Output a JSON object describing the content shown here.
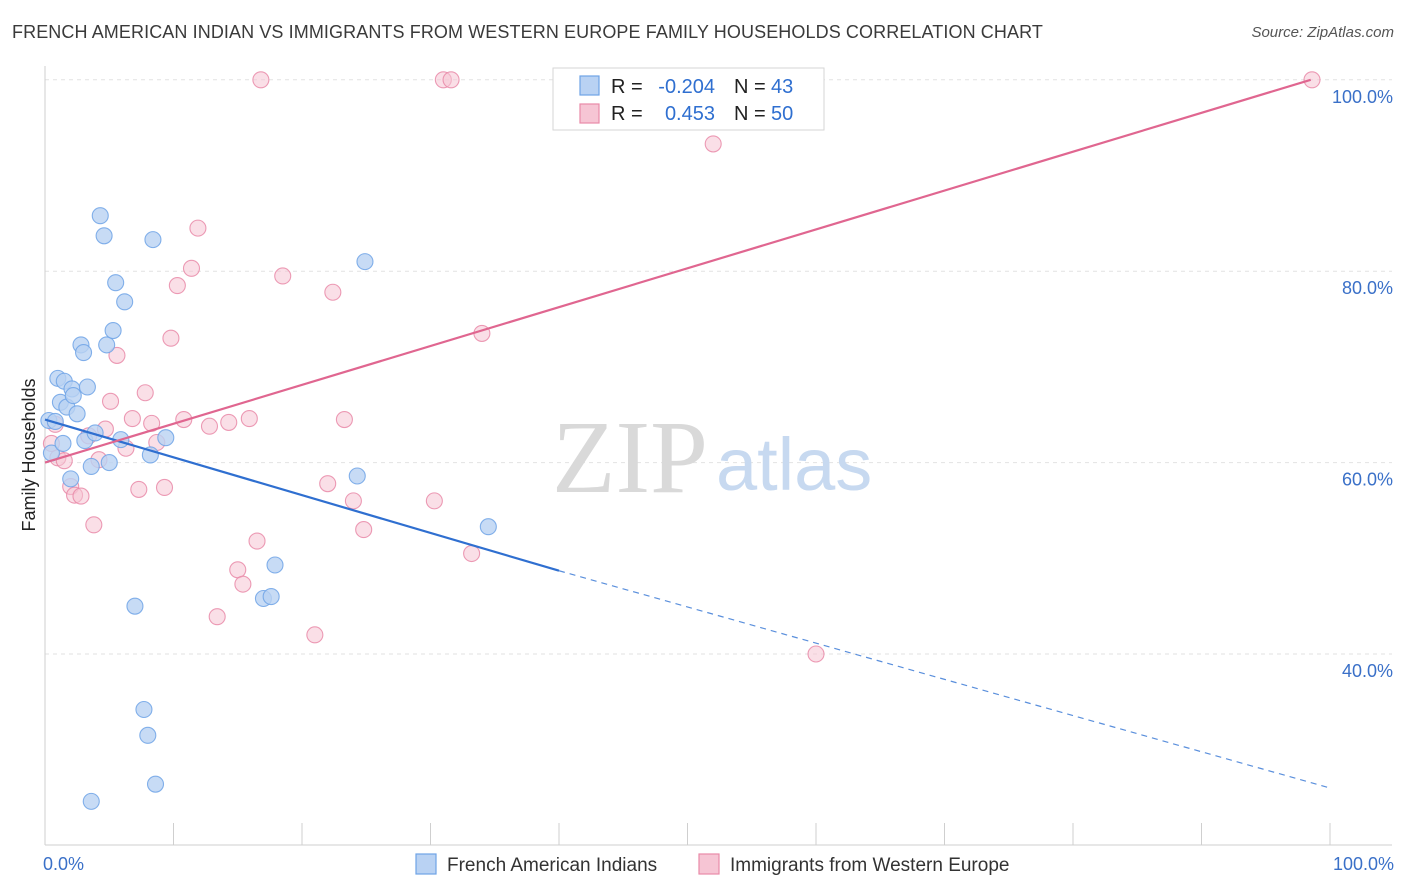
{
  "title": "FRENCH AMERICAN INDIAN VS IMMIGRANTS FROM WESTERN EUROPE FAMILY HOUSEHOLDS CORRELATION CHART",
  "source": "Source: ZipAtlas.com",
  "watermark": {
    "part1": "ZIP",
    "part2": "atlas"
  },
  "legend": {
    "rows": [
      {
        "r_label": "R =",
        "r_value": "-0.204",
        "n_label": "N =",
        "n_value": "43"
      },
      {
        "r_label": "R =",
        "r_value": "0.453",
        "n_label": "N =",
        "n_value": "50"
      }
    ]
  },
  "chart_data": {
    "type": "scatter",
    "title": "FRENCH AMERICAN INDIAN VS IMMIGRANTS FROM WESTERN EUROPE FAMILY HOUSEHOLDS CORRELATION CHART",
    "xlabel": "",
    "ylabel": "Family Households",
    "xlim": [
      0,
      100
    ],
    "ylim": [
      20,
      102
    ],
    "x_tick_labels": [
      "0.0%",
      "100.0%"
    ],
    "y_ticks": [
      40,
      60,
      80,
      100
    ],
    "y_tick_labels": [
      "40.0%",
      "60.0%",
      "80.0%",
      "100.0%"
    ],
    "grid": true,
    "legend_position": "top-center",
    "series": [
      {
        "name": "French American Indians",
        "color": "#6fa3e6",
        "fill": "#b9d2f3",
        "r": -0.204,
        "n": 43,
        "trend": {
          "x0": 0,
          "y0": 64.5,
          "x1": 40,
          "y1": 48.7,
          "dashed_to_x": 100,
          "dashed_to_y": 26
        },
        "points": [
          [
            0.3,
            64.4
          ],
          [
            0.5,
            61.0
          ],
          [
            0.8,
            64.3
          ],
          [
            1.0,
            68.8
          ],
          [
            1.2,
            66.3
          ],
          [
            1.4,
            62.0
          ],
          [
            1.5,
            68.5
          ],
          [
            1.7,
            65.8
          ],
          [
            2.0,
            58.3
          ],
          [
            2.1,
            67.7
          ],
          [
            2.2,
            67.0
          ],
          [
            2.5,
            65.1
          ],
          [
            2.8,
            72.3
          ],
          [
            3.0,
            71.5
          ],
          [
            3.1,
            62.3
          ],
          [
            3.3,
            67.9
          ],
          [
            3.6,
            59.6
          ],
          [
            3.9,
            63.1
          ],
          [
            4.3,
            85.8
          ],
          [
            4.6,
            83.7
          ],
          [
            4.8,
            72.3
          ],
          [
            5.0,
            60.0
          ],
          [
            5.3,
            73.8
          ],
          [
            5.5,
            78.8
          ],
          [
            5.9,
            62.4
          ],
          [
            6.2,
            76.8
          ],
          [
            7.0,
            45.0
          ],
          [
            7.7,
            34.2
          ],
          [
            8.0,
            31.5
          ],
          [
            8.2,
            60.8
          ],
          [
            8.4,
            83.3
          ],
          [
            8.6,
            26.4
          ],
          [
            9.4,
            62.6
          ],
          [
            17.0,
            45.8
          ],
          [
            17.6,
            46.0
          ],
          [
            17.9,
            49.3
          ],
          [
            24.3,
            58.6
          ],
          [
            24.9,
            81.0
          ],
          [
            34.5,
            53.3
          ],
          [
            3.6,
            24.6
          ]
        ]
      },
      {
        "name": "Immigrants from Western Europe",
        "color": "#e98aa8",
        "fill": "#f6c5d4",
        "r": 0.453,
        "n": 50,
        "trend": {
          "x0": 0,
          "y0": 60.0,
          "x1": 98.5,
          "y1": 100.0
        },
        "points": [
          [
            0.5,
            62.0
          ],
          [
            0.8,
            64.0
          ],
          [
            1.0,
            60.5
          ],
          [
            1.5,
            60.2
          ],
          [
            2.0,
            57.5
          ],
          [
            2.3,
            56.6
          ],
          [
            2.8,
            56.5
          ],
          [
            3.4,
            62.8
          ],
          [
            3.8,
            53.5
          ],
          [
            4.2,
            60.3
          ],
          [
            4.7,
            63.5
          ],
          [
            5.1,
            66.4
          ],
          [
            5.6,
            71.2
          ],
          [
            6.3,
            61.5
          ],
          [
            6.8,
            64.6
          ],
          [
            7.3,
            57.2
          ],
          [
            7.8,
            67.3
          ],
          [
            8.3,
            64.1
          ],
          [
            8.7,
            62.1
          ],
          [
            9.3,
            57.4
          ],
          [
            9.8,
            73.0
          ],
          [
            10.3,
            78.5
          ],
          [
            10.8,
            64.5
          ],
          [
            11.4,
            80.3
          ],
          [
            11.9,
            84.5
          ],
          [
            12.8,
            63.8
          ],
          [
            13.4,
            43.9
          ],
          [
            14.3,
            64.2
          ],
          [
            15.0,
            48.8
          ],
          [
            15.4,
            47.3
          ],
          [
            15.9,
            64.6
          ],
          [
            16.5,
            51.8
          ],
          [
            16.8,
            100.0
          ],
          [
            18.5,
            79.5
          ],
          [
            21.0,
            42.0
          ],
          [
            22.0,
            57.8
          ],
          [
            22.4,
            77.8
          ],
          [
            23.3,
            64.5
          ],
          [
            24.0,
            56.0
          ],
          [
            24.8,
            53.0
          ],
          [
            30.3,
            56.0
          ],
          [
            31.0,
            100.0
          ],
          [
            31.6,
            100.0
          ],
          [
            33.2,
            50.5
          ],
          [
            34.0,
            73.5
          ],
          [
            52.0,
            93.3
          ],
          [
            60.0,
            40.0
          ],
          [
            98.6,
            100.0
          ]
        ]
      }
    ]
  }
}
